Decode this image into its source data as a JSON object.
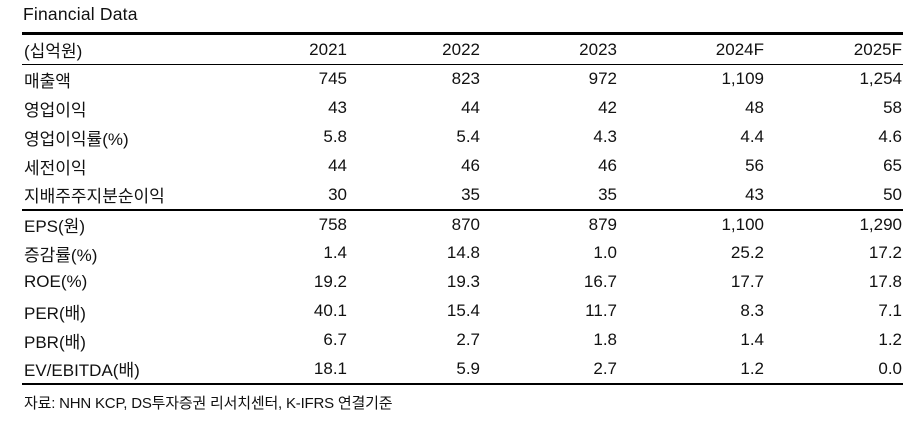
{
  "title": "Financial Data",
  "table": {
    "unit_header": "(십억원)",
    "columns": [
      "2021",
      "2022",
      "2023",
      "2024F",
      "2025F"
    ],
    "sections": [
      {
        "rows": [
          {
            "label": "매출액",
            "values": [
              "745",
              "823",
              "972",
              "1,109",
              "1,254"
            ]
          },
          {
            "label": "영업이익",
            "values": [
              "43",
              "44",
              "42",
              "48",
              "58"
            ]
          },
          {
            "label": "영업이익률(%)",
            "values": [
              "5.8",
              "5.4",
              "4.3",
              "4.4",
              "4.6"
            ]
          },
          {
            "label": "세전이익",
            "values": [
              "44",
              "46",
              "46",
              "56",
              "65"
            ]
          },
          {
            "label": "지배주주지분순이익",
            "values": [
              "30",
              "35",
              "35",
              "43",
              "50"
            ]
          }
        ]
      },
      {
        "rows": [
          {
            "label": "EPS(원)",
            "values": [
              "758",
              "870",
              "879",
              "1,100",
              "1,290"
            ]
          },
          {
            "label": "증감률(%)",
            "values": [
              "1.4",
              "14.8",
              "1.0",
              "25.2",
              "17.2"
            ]
          },
          {
            "label": "ROE(%)",
            "values": [
              "19.2",
              "19.3",
              "16.7",
              "17.7",
              "17.8"
            ]
          },
          {
            "label": "PER(배)",
            "values": [
              "40.1",
              "15.4",
              "11.7",
              "8.3",
              "7.1"
            ]
          },
          {
            "label": "PBR(배)",
            "values": [
              "6.7",
              "2.7",
              "1.8",
              "1.4",
              "1.2"
            ]
          },
          {
            "label": "EV/EBITDA(배)",
            "values": [
              "18.1",
              "5.9",
              "2.7",
              "1.2",
              "0.0"
            ]
          }
        ]
      }
    ]
  },
  "footer": {
    "source": "자료: NHN KCP, DS투자증권 리서치센터, K-IFRS 연결기준"
  },
  "colors": {
    "text": "#111111",
    "rule": "#000000",
    "background": "#ffffff"
  }
}
